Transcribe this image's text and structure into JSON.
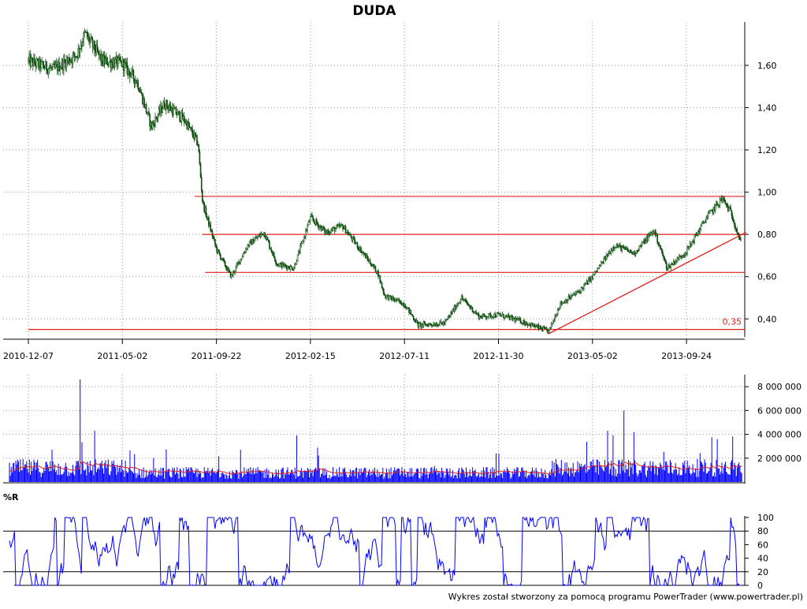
{
  "chart_data": [
    {
      "type": "candlestick",
      "title": "DUDA",
      "x_ticks": [
        "2010-12-07",
        "2011-05-02",
        "2011-09-22",
        "2012-02-15",
        "2012-07-11",
        "2012-11-30",
        "2013-05-02",
        "2013-09-24"
      ],
      "y_ticks": [
        "1,60",
        "1,40",
        "1,20",
        "1,00",
        "0,80",
        "0,60",
        "0,40"
      ],
      "ylim": [
        0.33,
        1.79
      ],
      "grid": true,
      "series": [
        {
          "values": [
            {
              "x": "2010-12-07",
              "y": 1.62
            },
            {
              "x": "2011-01-15",
              "y": 1.58
            },
            {
              "x": "2011-02-20",
              "y": 1.65
            },
            {
              "x": "2011-03-05",
              "y": 1.75
            },
            {
              "x": "2011-04-01",
              "y": 1.62
            },
            {
              "x": "2011-05-02",
              "y": 1.61
            },
            {
              "x": "2011-05-25",
              "y": 1.52
            },
            {
              "x": "2011-06-15",
              "y": 1.31
            },
            {
              "x": "2011-07-05",
              "y": 1.42
            },
            {
              "x": "2011-08-05",
              "y": 1.34
            },
            {
              "x": "2011-08-25",
              "y": 1.23
            },
            {
              "x": "2011-09-01",
              "y": 0.95
            },
            {
              "x": "2011-09-22",
              "y": 0.73
            },
            {
              "x": "2011-10-15",
              "y": 0.6
            },
            {
              "x": "2011-11-10",
              "y": 0.75
            },
            {
              "x": "2011-12-05",
              "y": 0.81
            },
            {
              "x": "2011-12-25",
              "y": 0.66
            },
            {
              "x": "2012-01-20",
              "y": 0.64
            },
            {
              "x": "2012-02-15",
              "y": 0.88
            },
            {
              "x": "2012-03-10",
              "y": 0.81
            },
            {
              "x": "2012-04-05",
              "y": 0.84
            },
            {
              "x": "2012-05-05",
              "y": 0.72
            },
            {
              "x": "2012-05-30",
              "y": 0.62
            },
            {
              "x": "2012-06-10",
              "y": 0.51
            },
            {
              "x": "2012-07-11",
              "y": 0.47
            },
            {
              "x": "2012-08-01",
              "y": 0.37
            },
            {
              "x": "2012-09-10",
              "y": 0.38
            },
            {
              "x": "2012-10-05",
              "y": 0.5
            },
            {
              "x": "2012-11-01",
              "y": 0.41
            },
            {
              "x": "2012-11-30",
              "y": 0.42
            },
            {
              "x": "2013-01-05",
              "y": 0.39
            },
            {
              "x": "2013-02-20",
              "y": 0.34
            },
            {
              "x": "2013-03-10",
              "y": 0.47
            },
            {
              "x": "2013-04-10",
              "y": 0.53
            },
            {
              "x": "2013-05-02",
              "y": 0.6
            },
            {
              "x": "2013-06-05",
              "y": 0.75
            },
            {
              "x": "2013-07-05",
              "y": 0.71
            },
            {
              "x": "2013-08-05",
              "y": 0.82
            },
            {
              "x": "2013-08-25",
              "y": 0.64
            },
            {
              "x": "2013-09-24",
              "y": 0.72
            },
            {
              "x": "2013-10-25",
              "y": 0.88
            },
            {
              "x": "2013-11-18",
              "y": 0.97
            },
            {
              "x": "2013-12-02",
              "y": 0.9
            },
            {
              "x": "2013-12-18",
              "y": 0.75
            }
          ]
        }
      ],
      "horizontal_lines": [
        {
          "y": 0.98,
          "from": "2011-08-20",
          "color": "#e0201c"
        },
        {
          "y": 0.8,
          "from": "2011-09-01",
          "color": "#e0201c"
        },
        {
          "y": 0.62,
          "from": "2011-09-05",
          "color": "#e0201c"
        },
        {
          "y": 0.35,
          "from": "2010-12-07",
          "color": "#e0201c",
          "label": "0,35"
        }
      ],
      "trend_lines": [
        {
          "from": {
            "x": "2013-02-20",
            "y": 0.33
          },
          "to": {
            "x": "2013-12-25",
            "y": 0.81
          },
          "color": "#e0201c"
        }
      ],
      "colors": {
        "price": "#0a4d0a",
        "lines": "#e0201c"
      }
    },
    {
      "type": "bar",
      "y_ticks": [
        "8 000 000",
        "6 000 000",
        "4 000 000",
        "2 000 000"
      ],
      "ylim": [
        0,
        9000000
      ],
      "volume_spikes": [
        {
          "x": "2011-02-25",
          "y": 8600000
        },
        {
          "x": "2011-03-20",
          "y": 4300000
        },
        {
          "x": "2012-01-25",
          "y": 3900000
        },
        {
          "x": "2013-05-25",
          "y": 4300000
        },
        {
          "x": "2013-06-20",
          "y": 6000000
        },
        {
          "x": "2013-07-05",
          "y": 4200000
        },
        {
          "x": "2013-11-10",
          "y": 3600000
        }
      ],
      "baseline_average": 900000,
      "moving_average_level": 1100000,
      "colors": {
        "bars": "#0000ff",
        "average": "#e0201c"
      }
    },
    {
      "type": "line",
      "title": "%R",
      "y_ticks": [
        "100",
        "80",
        "60",
        "40",
        "20",
        "0"
      ],
      "ylim": [
        0,
        100
      ],
      "reference_lines": [
        80,
        20
      ],
      "series_color": "#0000ff"
    }
  ],
  "footer": {
    "credit": "Wykres został stworzony za pomocą programu PowerTrader (www.powertrader.pl)"
  }
}
